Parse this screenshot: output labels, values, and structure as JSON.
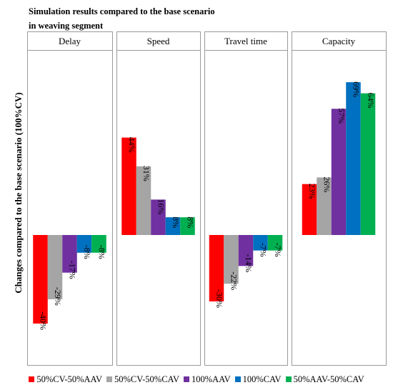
{
  "title_line1": "Simulation results compared to the base scenario",
  "title_line2": "in weaving segment",
  "chart_data": {
    "type": "bar",
    "ylabel": "Changes compared to the base scenario (100%CV)",
    "legend_position": "bottom",
    "grid": false,
    "ylim": [
      -0.6,
      0.95
    ],
    "series": [
      {
        "name": "50%CV-50%AAV",
        "color": "#ff0000"
      },
      {
        "name": "50%CV-50%CAV",
        "color": "#a5a5a5"
      },
      {
        "name": "100%AAV",
        "color": "#7030a0"
      },
      {
        "name": "100%CAV",
        "color": "#0070c0"
      },
      {
        "name": "50%AAV-50%CAV",
        "color": "#00b050"
      }
    ],
    "panels": [
      {
        "name": "Delay",
        "values": [
          -0.4,
          -0.29,
          -0.17,
          -0.08,
          -0.08
        ],
        "labels": [
          "-40%",
          "-29%",
          "-17%",
          "-8%",
          "-8%"
        ]
      },
      {
        "name": "Speed",
        "values": [
          0.44,
          0.31,
          0.16,
          0.08,
          0.08
        ],
        "labels": [
          "44%",
          "31%",
          "16%",
          "8%",
          "8%"
        ]
      },
      {
        "name": "Travel time",
        "values": [
          -0.3,
          -0.22,
          -0.14,
          -0.07,
          -0.07
        ],
        "labels": [
          "-30%",
          "-22%",
          "-14%",
          "-7%",
          "-7%"
        ]
      },
      {
        "name": "Capacity",
        "values": [
          0.23,
          0.26,
          0.57,
          0.69,
          0.64
        ],
        "labels": [
          "23%",
          "26%",
          "57%",
          "69%",
          "64%"
        ]
      }
    ]
  }
}
